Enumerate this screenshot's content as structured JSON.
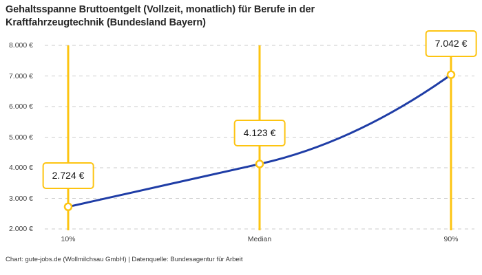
{
  "header": {
    "title_lines": [
      "Gehaltsspanne Bruttoentgelt (Vollzeit, monatlich) für Berufe in der",
      "Kraftfahrzeugtechnik (Bundesland Bayern)"
    ]
  },
  "footer": {
    "text": "Chart: gute-jobs.de (Wollmilchsau GmbH) | Datenquelle: Bundesagentur für Arbeit"
  },
  "chart_data": {
    "type": "line",
    "title": "Gehaltsspanne Bruttoentgelt (Vollzeit, monatlich) für Berufe in der Kraftfahrzeugtechnik (Bundesland Bayern)",
    "categories": [
      "10%",
      "Median",
      "90%"
    ],
    "values": [
      2724,
      4123,
      7042
    ],
    "value_labels": [
      "2.724 €",
      "4.123 €",
      "7.042 €"
    ],
    "ylim": [
      2000,
      8000
    ],
    "ytick_step": 1000,
    "ytick_labels": [
      "2.000 €",
      "3.000 €",
      "4.000 €",
      "5.000 €",
      "6.000 €",
      "7.000 €",
      "8.000 €"
    ],
    "grid": "horizontal-dashed",
    "legend": "none",
    "marker_shape": "open-circle",
    "reference_lines": "vertical at each category",
    "colors": {
      "line": "#1f3da6",
      "accent_yellow": "#fdc411",
      "marker_fill": "#ffffff",
      "grid": "#cbcbcb",
      "title_text": "#262626",
      "tick_text": "#404040"
    }
  }
}
